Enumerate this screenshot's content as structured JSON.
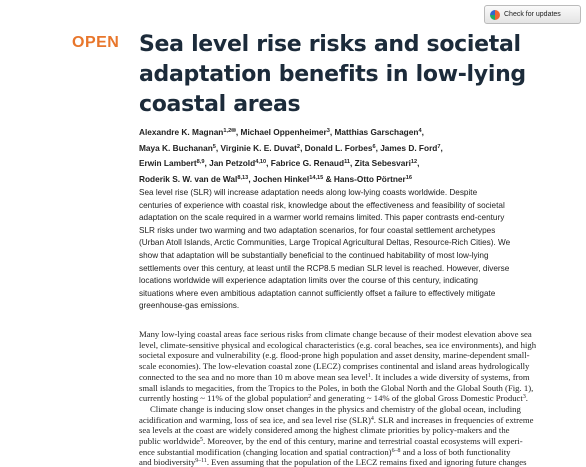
{
  "header": {
    "update_button": "Check for updates",
    "open_label": "OPEN"
  },
  "title": {
    "lines": [
      "Sea level rise risks and societal",
      "adaptation benefits in low-lying",
      "coastal areas"
    ]
  },
  "authors": {
    "lines": [
      [
        "Alexandre K. Magnan",
        {
          "sup": "1,2✉"
        },
        ", Michael Oppenheimer",
        {
          "sup": "3"
        },
        ", Matthias Garschagen",
        {
          "sup": "4"
        },
        ","
      ],
      [
        "Maya K. Buchanan",
        {
          "sup": "5"
        },
        ", Virginie K. E. Duvat",
        {
          "sup": "2"
        },
        ", Donald L. Forbes",
        {
          "sup": "6"
        },
        ", James D. Ford",
        {
          "sup": "7"
        },
        ","
      ],
      [
        "Erwin Lambert",
        {
          "sup": "8,9"
        },
        ", Jan Petzold",
        {
          "sup": "4,10"
        },
        ", Fabrice G. Renaud",
        {
          "sup": "11"
        },
        ", Zita Sebesvari",
        {
          "sup": "12"
        },
        ","
      ],
      [
        "Roderik S. W. van de Wal",
        {
          "sup": "8,13"
        },
        ", Jochen Hinkel",
        {
          "sup": "14,15"
        },
        " & Hans-Otto Pörtner",
        {
          "sup": "16"
        }
      ]
    ]
  },
  "abstract": {
    "lines": [
      "Sea level rise (SLR) will increase adaptation needs along low-lying coasts worldwide. Despite",
      "centuries of experience with coastal risk, knowledge about the effectiveness and feasibility of societal",
      "adaptation on the scale required in a warmer world remains limited. This paper contrasts end-century",
      "SLR risks under two warming and two adaptation scenarios, for four coastal settlement archetypes",
      "(Urban Atoll Islands, Arctic Communities, Large Tropical Agricultural Deltas, Resource-Rich Cities). We",
      "show that adaptation will be substantially beneficial to the continued habitability of most low-lying",
      "settlements over this century, at least until the RCP8.5 median SLR level is reached. However, diverse",
      "locations worldwide will experience adaptation limits over the course of this century, indicating",
      "situations where even ambitious adaptation cannot sufficiently offset a failure to effectively mitigate",
      "greenhouse-gas emissions."
    ]
  },
  "body": {
    "lines": [
      [
        "Many low-lying coastal areas face serious risks from climate change because of their modest elevation above sea"
      ],
      [
        "level, climate-sensitive physical and ecological characteristics (e.g. coral beaches, sea ice environments), and high"
      ],
      [
        "societal exposure and vulnerability (e.g. flood-prone high population and asset density, marine-dependent small-"
      ],
      [
        "scale economies). The low-elevation coastal zone (LECZ) comprises continental and island areas hydrologically"
      ],
      [
        "connected to the sea and no more than 10 m above mean sea level",
        {
          "sup": "1"
        },
        ". It includes a wide diversity of systems, from"
      ],
      [
        "small islands to megacities, from the Tropics to the Poles, in both the Global North and the Global South (Fig. 1),"
      ],
      [
        "currently hosting ~ 11% of the global population",
        {
          "sup": "2"
        },
        " and generating ~ 14% of the global Gross Domestic Product",
        {
          "sup": "3"
        },
        "."
      ],
      [
        "Climate change is inducing slow onset changes in the physics and chemistry of the global ocean, including"
      ],
      [
        "acidification and warming, loss of sea ice, and sea level rise (SLR)",
        {
          "sup": "4"
        },
        ". SLR and increases in frequencies of extreme"
      ],
      [
        "sea levels at the coast are widely considered among the highest climate priorities by policy-makers and the"
      ],
      [
        "public worldwide",
        {
          "sup": "5"
        },
        ". Moreover, by the end of this century, marine and terrestrial coastal ecosystems will experi-"
      ],
      [
        "ence substantial modification (changing location and spatial contraction)",
        {
          "sup": "6–8"
        },
        " and a loss of both functionality"
      ],
      [
        "and biodiversity",
        {
          "sup": "9–11"
        },
        ". Even assuming that the population of the LECZ remains fixed and ignoring future changes"
      ]
    ]
  }
}
